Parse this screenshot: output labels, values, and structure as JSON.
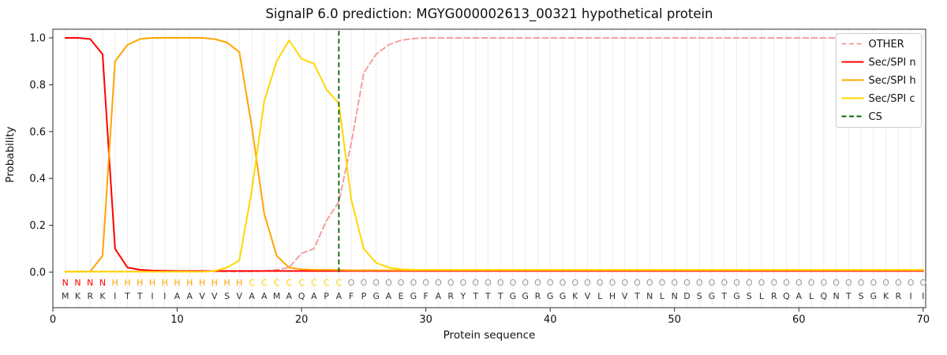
{
  "chart_data": {
    "type": "line",
    "title": "SignalP 6.0 prediction: MGYG000002613_00321 hypothetical protein",
    "xlabel": "Protein sequence",
    "ylabel": "Probability",
    "xlim": [
      0,
      70.2
    ],
    "ylim": [
      -0.155,
      1.04
    ],
    "xticks": [
      0,
      10,
      20,
      30,
      40,
      50,
      60,
      70
    ],
    "yticks": [
      "0.0",
      "0.2",
      "0.4",
      "0.6",
      "0.8",
      "1.0"
    ],
    "grid": "vertical-per-residue",
    "legend_position": "upper right",
    "sequence": "MKRKITTIIAAVVSVAAMAQAPAFPGAEGFARYTTTGGRGGKVLHVTNLNDSGTGSLRQALQNTSGKRII",
    "regions": [
      {
        "label": "N",
        "color": "#ff0000",
        "start": 1,
        "end": 4
      },
      {
        "label": "H",
        "color": "#ffa500",
        "start": 5,
        "end": 15
      },
      {
        "label": "C",
        "color": "#ffd700",
        "start": 16,
        "end": 23
      },
      {
        "label": "O",
        "color": "#999999",
        "start": 24,
        "end": 70
      }
    ],
    "cs": {
      "label": "CS",
      "color": "#006400",
      "x": 23
    },
    "legend": [
      {
        "label": "OTHER",
        "color": "#f3a0a0",
        "dashed": true
      },
      {
        "label": "Sec/SPI n",
        "color": "#ff0000",
        "dashed": false
      },
      {
        "label": "Sec/SPI h",
        "color": "#ffa500",
        "dashed": false
      },
      {
        "label": "Sec/SPI c",
        "color": "#ffd700",
        "dashed": false
      },
      {
        "label": "CS",
        "color": "#006400",
        "dashed": true
      }
    ],
    "series": [
      {
        "name": "OTHER",
        "color": "#f3a0a0",
        "dashed": true,
        "values": [
          0.003,
          0.003,
          0.003,
          0.003,
          0.003,
          0.003,
          0.003,
          0.003,
          0.003,
          0.003,
          0.003,
          0.003,
          0.003,
          0.003,
          0.003,
          0.003,
          0.005,
          0.01,
          0.02,
          0.08,
          0.1,
          0.22,
          0.3,
          0.55,
          0.85,
          0.93,
          0.97,
          0.99,
          0.997,
          1.0,
          1.0,
          1.0,
          1.0,
          1.0,
          1.0,
          1.0,
          1.0,
          1.0,
          1.0,
          1.0,
          1.0,
          1.0,
          1.0,
          1.0,
          1.0,
          1.0,
          1.0,
          1.0,
          1.0,
          1.0,
          1.0,
          1.0,
          1.0,
          1.0,
          1.0,
          1.0,
          1.0,
          1.0,
          1.0,
          1.0,
          1.0,
          1.0,
          1.0,
          1.0,
          1.0,
          1.0,
          1.0,
          1.0,
          1.0,
          1.0
        ]
      },
      {
        "name": "Sec/SPI n",
        "color": "#ff0000",
        "dashed": false,
        "values": [
          1.0,
          1.0,
          0.995,
          0.93,
          0.1,
          0.02,
          0.01,
          0.007,
          0.006,
          0.005,
          0.005,
          0.005,
          0.005,
          0.005,
          0.005,
          0.005,
          0.005,
          0.005,
          0.005,
          0.005,
          0.005,
          0.005,
          0.005,
          0.005,
          0.005,
          0.005,
          0.005,
          0.005,
          0.005,
          0.005,
          0.005,
          0.005,
          0.005,
          0.005,
          0.005,
          0.005,
          0.005,
          0.005,
          0.005,
          0.005,
          0.005,
          0.005,
          0.005,
          0.005,
          0.005,
          0.005,
          0.005,
          0.005,
          0.005,
          0.005,
          0.005,
          0.005,
          0.005,
          0.005,
          0.005,
          0.005,
          0.005,
          0.005,
          0.005,
          0.005,
          0.005,
          0.005,
          0.005,
          0.005,
          0.005,
          0.005,
          0.005,
          0.005,
          0.005,
          0.005
        ]
      },
      {
        "name": "Sec/SPI h",
        "color": "#ffa500",
        "dashed": false,
        "values": [
          0.002,
          0.002,
          0.003,
          0.07,
          0.9,
          0.97,
          0.995,
          1.0,
          1.0,
          1.0,
          1.0,
          1.0,
          0.995,
          0.98,
          0.94,
          0.62,
          0.25,
          0.07,
          0.02,
          0.012,
          0.01,
          0.01,
          0.009,
          0.008,
          0.008,
          0.008,
          0.008,
          0.008,
          0.008,
          0.008,
          0.008,
          0.008,
          0.008,
          0.008,
          0.008,
          0.008,
          0.008,
          0.008,
          0.008,
          0.008,
          0.008,
          0.008,
          0.008,
          0.008,
          0.008,
          0.008,
          0.008,
          0.008,
          0.008,
          0.008,
          0.008,
          0.008,
          0.008,
          0.008,
          0.008,
          0.008,
          0.008,
          0.008,
          0.008,
          0.008,
          0.008,
          0.008,
          0.008,
          0.008,
          0.008,
          0.008,
          0.008,
          0.008,
          0.008,
          0.008
        ]
      },
      {
        "name": "Sec/SPI c",
        "color": "#ffd700",
        "dashed": false,
        "values": [
          0.002,
          0.002,
          0.002,
          0.002,
          0.002,
          0.002,
          0.002,
          0.002,
          0.002,
          0.002,
          0.002,
          0.002,
          0.005,
          0.02,
          0.05,
          0.35,
          0.73,
          0.9,
          0.99,
          0.91,
          0.89,
          0.78,
          0.72,
          0.31,
          0.1,
          0.04,
          0.02,
          0.012,
          0.01,
          0.01,
          0.01,
          0.01,
          0.01,
          0.01,
          0.01,
          0.01,
          0.01,
          0.01,
          0.01,
          0.01,
          0.01,
          0.01,
          0.01,
          0.01,
          0.01,
          0.01,
          0.01,
          0.01,
          0.01,
          0.01,
          0.01,
          0.01,
          0.01,
          0.01,
          0.01,
          0.01,
          0.01,
          0.01,
          0.01,
          0.01,
          0.01,
          0.01,
          0.01,
          0.01,
          0.01,
          0.01,
          0.01,
          0.01,
          0.01,
          0.01
        ]
      }
    ]
  }
}
